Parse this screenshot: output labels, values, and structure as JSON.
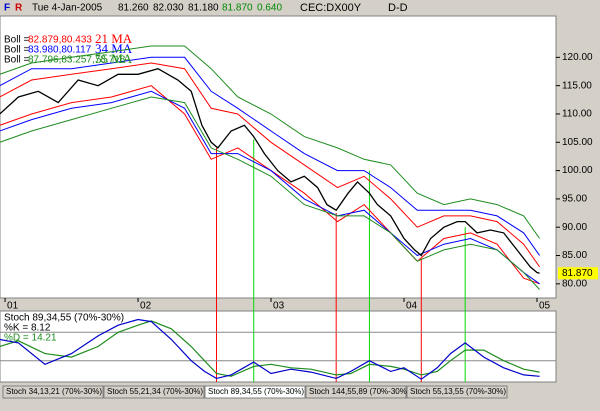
{
  "header": {
    "f": "F",
    "r": "R",
    "date": "Tue 4-Jan-2005",
    "open": "81.260",
    "high": "82.030",
    "low": "81.180",
    "close": "81.870",
    "change": "0.640",
    "symbol": "CEC:DX00Y",
    "period": "D-D"
  },
  "chart_data": {
    "type": "line",
    "x": [
      2000.96,
      2001.1,
      2001.25,
      2001.4,
      2001.55,
      2001.7,
      2001.85,
      2002.0,
      2002.15,
      2002.3,
      2002.4,
      2002.48,
      2002.55,
      2002.6,
      2002.7,
      2002.8,
      2002.87,
      2002.95,
      2003.05,
      2003.15,
      2003.25,
      2003.35,
      2003.42,
      2003.49,
      2003.58,
      2003.65,
      2003.74,
      2003.8,
      2003.9,
      2004.0,
      2004.08,
      2004.13,
      2004.2,
      2004.3,
      2004.4,
      2004.46,
      2004.55,
      2004.65,
      2004.75,
      2004.85,
      2004.95,
      2005.0,
      2005.02
    ],
    "close": [
      110,
      113,
      114,
      112,
      116,
      115,
      117,
      117,
      118,
      116,
      114,
      108,
      105,
      104,
      107,
      108,
      106,
      103,
      100,
      98,
      99,
      97,
      94,
      93,
      96,
      98,
      96,
      94,
      92,
      88,
      86,
      85,
      88,
      90,
      91,
      91,
      89,
      89.5,
      89,
      86,
      83,
      82,
      81.87
    ],
    "close_color": "#000000",
    "band_x": [
      2000.96,
      2001.2,
      2001.5,
      2001.8,
      2002.1,
      2002.35,
      2002.55,
      2002.75,
      2003.0,
      2003.25,
      2003.5,
      2003.7,
      2003.9,
      2004.1,
      2004.3,
      2004.5,
      2004.7,
      2004.9,
      2005.02
    ],
    "bands": [
      {
        "label": "Boll =",
        "values": "82.879,80.433",
        "ma": "21 MA",
        "color": "#ff0000",
        "upper": [
          113,
          116,
          117,
          118,
          119,
          118,
          111,
          110,
          105,
          101,
          97,
          99,
          95,
          90,
          92,
          92,
          91,
          87,
          83
        ],
        "lower": [
          108,
          110,
          112,
          113,
          115,
          110,
          102,
          104,
          100,
          96,
          91,
          94,
          89,
          84,
          88,
          89,
          87,
          81,
          80
        ]
      },
      {
        "label": "Boll =",
        "values": "83.980,80.117",
        "ma": "34 MA",
        "color": "#0000ff",
        "upper": [
          115,
          118,
          118,
          119,
          120,
          120,
          114,
          111,
          107,
          103,
          100,
          100,
          97,
          93,
          93,
          93,
          92,
          89,
          85
        ],
        "lower": [
          107,
          109,
          111,
          112,
          114,
          111,
          103,
          103,
          100,
          95,
          92,
          93,
          89,
          85,
          87,
          88,
          86,
          82,
          80
        ]
      },
      {
        "label": "Boll =",
        "values": "87.796,83.257,78.718",
        "ma": "55 MA",
        "color": "#1e8c1e",
        "upper": [
          117,
          119,
          120,
          121,
          122,
          122,
          118,
          113,
          110,
          106,
          104,
          102,
          101,
          96,
          94,
          95,
          94,
          92,
          88
        ],
        "lower": [
          105,
          107,
          109,
          111,
          113,
          112,
          104,
          102,
          99,
          94,
          92,
          92,
          89,
          84,
          86,
          87,
          86,
          82,
          79
        ]
      }
    ],
    "xlim": [
      2000.962,
      2005.143
    ],
    "xticks": [
      {
        "value": 2001,
        "label": "01"
      },
      {
        "value": 2002,
        "label": "02"
      },
      {
        "value": 2003,
        "label": "03"
      },
      {
        "value": 2004,
        "label": "04"
      },
      {
        "value": 2005,
        "label": "05"
      }
    ],
    "ylim": [
      77.5,
      127.3
    ],
    "yticks": [
      {
        "value": 80,
        "label": "80.00"
      },
      {
        "value": 85,
        "label": "85.00"
      },
      {
        "value": 90,
        "label": "90.00"
      },
      {
        "value": 95,
        "label": "95.00"
      },
      {
        "value": 100,
        "label": "100.00"
      },
      {
        "value": 105,
        "label": "105.00"
      },
      {
        "value": 110,
        "label": "110.00"
      },
      {
        "value": 115,
        "label": "115.00"
      },
      {
        "value": 120,
        "label": "120.00"
      }
    ],
    "last_price": {
      "value": 81.87,
      "label": "81.870"
    },
    "signals": [
      {
        "x": 2002.59,
        "top": 104,
        "color": "#ff0000"
      },
      {
        "x": 2003.49,
        "top": 92.5,
        "color": "#ff0000"
      },
      {
        "x": 2004.13,
        "top": 84.5,
        "color": "#ff0000"
      },
      {
        "x": 2002.87,
        "top": 105.5,
        "color": "#00dd00"
      },
      {
        "x": 2003.74,
        "top": 100,
        "color": "#00dd00"
      },
      {
        "x": 2004.46,
        "top": 90,
        "color": "#00dd00"
      }
    ],
    "stoch": {
      "title": "Stoch 89,34,55 (70%-30%)",
      "k_label": "%K = 8.12",
      "d_label": "%D = 14.21",
      "ylim": [
        0,
        100
      ],
      "levels": [
        70,
        30
      ],
      "x": [
        2000.96,
        2001.1,
        2001.3,
        2001.5,
        2001.7,
        2001.85,
        2002.0,
        2002.1,
        2002.25,
        2002.4,
        2002.5,
        2002.59,
        2002.7,
        2002.87,
        2003.0,
        2003.15,
        2003.3,
        2003.49,
        2003.6,
        2003.74,
        2003.9,
        2004.0,
        2004.13,
        2004.25,
        2004.35,
        2004.46,
        2004.6,
        2004.75,
        2004.9,
        2005.02
      ],
      "k": [
        60,
        55,
        25,
        40,
        65,
        80,
        88,
        85,
        60,
        30,
        15,
        5,
        10,
        28,
        12,
        18,
        14,
        5,
        15,
        30,
        15,
        20,
        4,
        20,
        40,
        55,
        35,
        20,
        10,
        8
      ],
      "k_color": "#0000cc",
      "d": [
        50,
        58,
        40,
        35,
        50,
        70,
        80,
        86,
        75,
        50,
        30,
        12,
        8,
        22,
        25,
        20,
        18,
        10,
        12,
        25,
        22,
        18,
        10,
        15,
        30,
        45,
        45,
        30,
        18,
        14
      ],
      "d_color": "#1e8c1e"
    }
  },
  "tabs": [
    "Stoch 34,13,21 (70%-30%)",
    "Stoch 55,21,34 (70%-30%)",
    "Stoch 89,34,55 (70%-30%)",
    "Stoch 144,55,89 (70%-30%)",
    "Stoch 55,13,55 (70%-30%)"
  ],
  "active_tab": 2
}
